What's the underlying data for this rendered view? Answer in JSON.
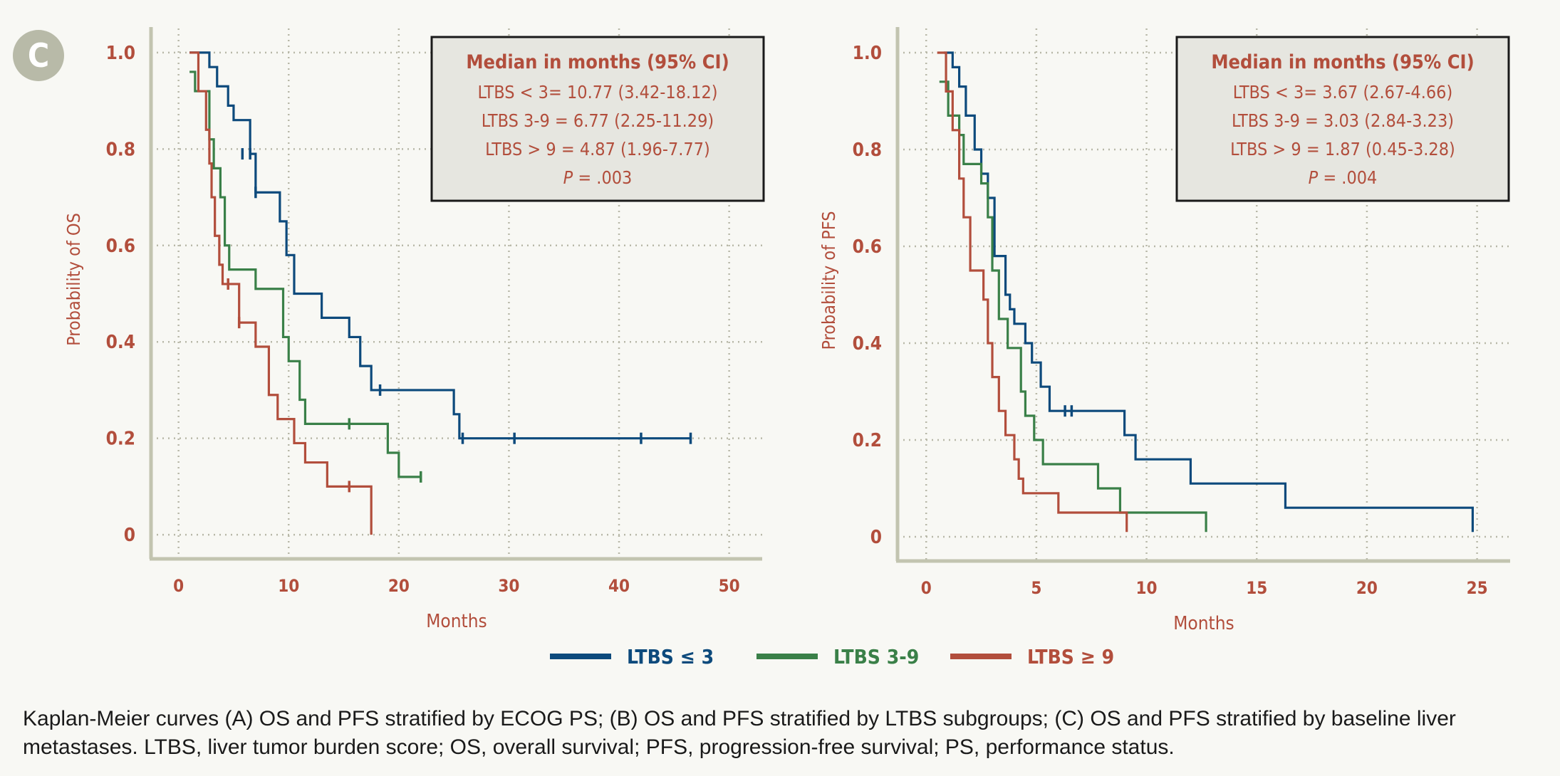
{
  "panel_label": "C",
  "colors": {
    "ltbs_low": "#0d4a7c",
    "ltbs_mid": "#3a8048",
    "ltbs_high": "#b24e3c",
    "text": "#b24e3c",
    "axis": "#c2c4b0",
    "grid": "#b8b8a8"
  },
  "legend": [
    {
      "name": "LTBS ≤ 3",
      "color": "#0d4a7c"
    },
    {
      "name": "LTBS 3-9",
      "color": "#3a8048"
    },
    {
      "name": "LTBS ≥ 9",
      "color": "#b24e3c"
    }
  ],
  "caption": "Kaplan-Meier curves (A) OS and PFS stratified by ECOG PS; (B) OS and PFS stratified by LTBS subgroups; (C) OS and PFS stratified by baseline liver metastases. LTBS, liver tumor burden score; OS, overall survival; PFS, progression-free survival; PS, performance status.",
  "chart_data": [
    {
      "type": "line",
      "subtype": "kaplan-meier",
      "title": "",
      "xlabel": "Months",
      "ylabel": "Probability of OS",
      "xlim": [
        -2.5,
        53
      ],
      "ylim": [
        -0.05,
        1.05
      ],
      "xticks": [
        0,
        10,
        20,
        30,
        40,
        50
      ],
      "yticks": [
        0,
        0.2,
        0.4,
        0.6,
        0.8,
        1.0
      ],
      "ytick_labels": [
        "0",
        "0.2",
        "0.4",
        "0.6",
        "0.8",
        "1.0"
      ],
      "grid": true,
      "legend_position": "bottom",
      "annotation": {
        "title": "Median in months (95% CI)",
        "lines": [
          "LTBS < 3= 10.77 (3.42-18.12)",
          "LTBS 3-9 = 6.77 (2.25-11.29)",
          "LTBS > 9 = 4.87 (1.96-7.77)"
        ],
        "p_label": "P",
        "p_value": " = .003",
        "position": "top-right"
      },
      "series": [
        {
          "name": "LTBS ≤ 3",
          "color": "#0d4a7c",
          "x": [
            1.0,
            2.8,
            3.5,
            4.5,
            5.0,
            6.5,
            7.0,
            9.0,
            9.2,
            9.8,
            10.5,
            13.0,
            15.5,
            16.5,
            17.5,
            25.0,
            25.5,
            46.5
          ],
          "y": [
            1.0,
            0.97,
            0.93,
            0.89,
            0.86,
            0.79,
            0.71,
            0.71,
            0.65,
            0.58,
            0.5,
            0.45,
            0.41,
            0.35,
            0.3,
            0.25,
            0.2,
            0.2
          ],
          "censored": [
            [
              5.8,
              0.79
            ],
            [
              6.5,
              0.79
            ],
            [
              7.0,
              0.71
            ],
            [
              18.3,
              0.3
            ],
            [
              25.8,
              0.2
            ],
            [
              30.5,
              0.2
            ],
            [
              42.0,
              0.2
            ],
            [
              46.5,
              0.2
            ]
          ]
        },
        {
          "name": "LTBS 3-9",
          "color": "#3a8048",
          "x": [
            1.0,
            1.5,
            2.8,
            3.2,
            3.8,
            4.2,
            4.6,
            6.0,
            7.0,
            9.5,
            10.0,
            11.0,
            11.5,
            19.0,
            20.0,
            22.0
          ],
          "y": [
            0.96,
            0.92,
            0.82,
            0.76,
            0.7,
            0.6,
            0.55,
            0.55,
            0.51,
            0.41,
            0.36,
            0.28,
            0.23,
            0.17,
            0.12,
            0.12
          ],
          "censored": [
            [
              15.5,
              0.23
            ],
            [
              22.0,
              0.12
            ]
          ]
        },
        {
          "name": "LTBS ≥ 9",
          "color": "#b24e3c",
          "x": [
            1.0,
            1.8,
            2.5,
            2.8,
            3.0,
            3.3,
            3.7,
            4.0,
            5.5,
            7.0,
            8.2,
            9.0,
            10.5,
            11.5,
            13.5,
            17.5,
            17.5
          ],
          "y": [
            1.0,
            0.92,
            0.84,
            0.77,
            0.7,
            0.62,
            0.56,
            0.52,
            0.44,
            0.39,
            0.29,
            0.24,
            0.19,
            0.15,
            0.1,
            0.1,
            0.0
          ],
          "censored": [
            [
              4.5,
              0.52
            ],
            [
              5.5,
              0.44
            ],
            [
              15.5,
              0.1
            ]
          ]
        }
      ]
    },
    {
      "type": "line",
      "subtype": "kaplan-meier",
      "title": "",
      "xlabel": "Months",
      "ylabel": "Probability of PFS",
      "xlim": [
        -1.3,
        26.5
      ],
      "ylim": [
        -0.05,
        1.05
      ],
      "xticks": [
        0,
        5,
        10,
        15,
        20,
        25
      ],
      "yticks": [
        0,
        0.2,
        0.4,
        0.6,
        0.8,
        1.0
      ],
      "ytick_labels": [
        "0",
        "0.2",
        "0.4",
        "0.6",
        "0.8",
        "1.0"
      ],
      "grid": true,
      "legend_position": "bottom",
      "annotation": {
        "title": "Median in months (95% CI)",
        "lines": [
          "LTBS < 3= 3.67 (2.67-4.66)",
          "LTBS 3-9 = 3.03 (2.84-3.23)",
          "LTBS > 9 = 1.87 (0.45-3.28)"
        ],
        "p_label": "P",
        "p_value": " = .004",
        "position": "top-right"
      },
      "series": [
        {
          "name": "LTBS ≤ 3",
          "color": "#0d4a7c",
          "x": [
            0.8,
            1.2,
            1.5,
            1.8,
            2.2,
            2.5,
            2.8,
            3.1,
            3.3,
            3.6,
            3.8,
            4.0,
            4.5,
            4.8,
            5.2,
            5.6,
            6.5,
            9.0,
            9.5,
            12.0,
            16.3,
            24.8,
            24.8
          ],
          "y": [
            1.0,
            0.97,
            0.93,
            0.87,
            0.8,
            0.75,
            0.7,
            0.58,
            0.58,
            0.5,
            0.47,
            0.44,
            0.4,
            0.36,
            0.31,
            0.26,
            0.26,
            0.21,
            0.16,
            0.11,
            0.06,
            0.06,
            0.01
          ],
          "censored": [
            [
              6.3,
              0.26
            ],
            [
              6.6,
              0.26
            ]
          ]
        },
        {
          "name": "LTBS 3-9",
          "color": "#3a8048",
          "x": [
            0.6,
            1.0,
            1.5,
            1.7,
            2.5,
            2.8,
            3.0,
            3.3,
            3.7,
            4.3,
            4.5,
            4.9,
            5.3,
            7.8,
            8.8,
            12.7,
            12.7
          ],
          "y": [
            0.94,
            0.87,
            0.83,
            0.77,
            0.73,
            0.66,
            0.55,
            0.45,
            0.39,
            0.3,
            0.25,
            0.2,
            0.15,
            0.1,
            0.05,
            0.05,
            0.01
          ],
          "censored": []
        },
        {
          "name": "LTBS ≥ 9",
          "color": "#b24e3c",
          "x": [
            0.5,
            0.9,
            1.2,
            1.5,
            1.7,
            2.0,
            2.6,
            2.8,
            3.0,
            3.3,
            3.6,
            4.0,
            4.2,
            4.4,
            6.0,
            9.1,
            9.1
          ],
          "y": [
            1.0,
            0.92,
            0.84,
            0.74,
            0.66,
            0.55,
            0.49,
            0.4,
            0.33,
            0.26,
            0.21,
            0.16,
            0.12,
            0.09,
            0.05,
            0.05,
            0.01
          ],
          "censored": []
        }
      ]
    }
  ]
}
